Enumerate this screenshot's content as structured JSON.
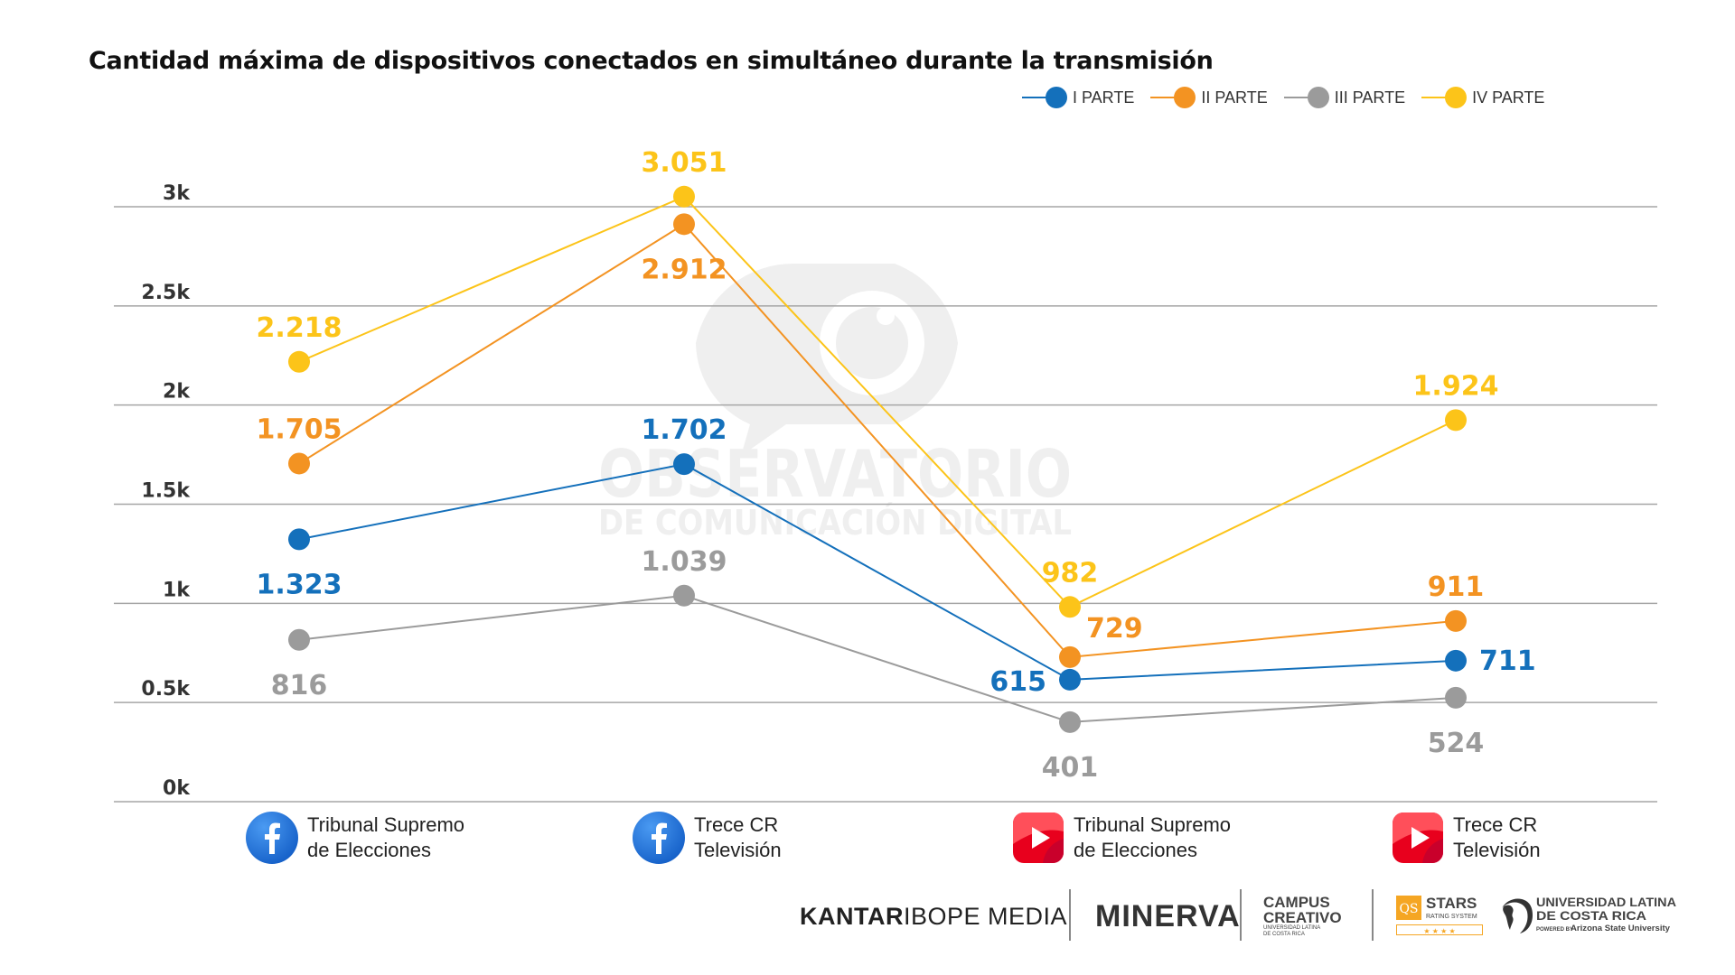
{
  "title": "Cantidad máxima de dispositivos conectados en simultáneo durante la transmisión",
  "legend": [
    {
      "label": "I PARTE",
      "color": "#1470bb"
    },
    {
      "label": "II PARTE",
      "color": "#f39322"
    },
    {
      "label": "III PARTE",
      "color": "#9b9b9b"
    },
    {
      "label": "IV PARTE",
      "color": "#fcc419"
    }
  ],
  "watermark": {
    "line1": "OBSERVATORIO",
    "line2": "DE COMUNICACIÓN DIGITAL"
  },
  "categories": [
    {
      "line1": "Tribunal Supremo",
      "line2": "de Elecciones",
      "platform": "facebook-icon"
    },
    {
      "line1": "Trece CR",
      "line2": "Televisión",
      "platform": "facebook-icon"
    },
    {
      "line1": "Tribunal Supremo",
      "line2": "de Elecciones",
      "platform": "youtube-icon"
    },
    {
      "line1": "Trece CR",
      "line2": "Televisión",
      "platform": "youtube-icon"
    }
  ],
  "footer": {
    "kantar_bold": "KANTAR",
    "kantar_rest": " IBOPE MEDIA",
    "minerva": "MINERVA",
    "campus_line1": "CAMPUS",
    "campus_line2": "CREATIVO",
    "campus_sub1": "UNIVERSIDAD LATINA",
    "campus_sub2": "DE COSTA RICA",
    "qs_logo": "QS",
    "qs_stars": "STARS",
    "qs_sub": "RATING SYSTEM",
    "qs_rating": "★ ★ ★ ★",
    "ulatina_line1": "UNIVERSIDAD LATINA",
    "ulatina_line2": "DE COSTA RICA",
    "ulatina_powered": "POWERED BY",
    "ulatina_asu": "Arizona State University"
  },
  "chart_data": {
    "type": "line",
    "title": "Cantidad máxima de dispositivos conectados en simultáneo durante la transmisión",
    "categories": [
      "Tribunal Supremo de Elecciones (Facebook)",
      "Trece CR Televisión (Facebook)",
      "Tribunal Supremo de Elecciones (YouTube)",
      "Trece CR Televisión (YouTube)"
    ],
    "series": [
      {
        "name": "I PARTE",
        "color": "#1470bb",
        "values": [
          1323,
          1702,
          615,
          711
        ],
        "labels": [
          "1.323",
          "1.702",
          "615",
          "711"
        ],
        "label_pos": [
          "below",
          "above",
          "left",
          "right"
        ]
      },
      {
        "name": "II PARTE",
        "color": "#f39322",
        "values": [
          1705,
          2912,
          729,
          911
        ],
        "labels": [
          "1.705",
          "2.912",
          "729",
          "911"
        ],
        "label_pos": [
          "above",
          "below",
          "above-right",
          "above"
        ]
      },
      {
        "name": "III PARTE",
        "color": "#9b9b9b",
        "values": [
          816,
          1039,
          401,
          524
        ],
        "labels": [
          "816",
          "1.039",
          "401",
          "524"
        ],
        "label_pos": [
          "below",
          "above",
          "below",
          "below"
        ]
      },
      {
        "name": "IV PARTE",
        "color": "#fcc419",
        "values": [
          2218,
          3051,
          982,
          1924
        ],
        "labels": [
          "2.218",
          "3.051",
          "982",
          "1.924"
        ],
        "label_pos": [
          "above",
          "above",
          "above",
          "above"
        ]
      }
    ],
    "yticks": [
      "0k",
      "0.5k",
      "1k",
      "1.5k",
      "2k",
      "2.5k",
      "3k"
    ],
    "ytick_values": [
      0,
      500,
      1000,
      1500,
      2000,
      2500,
      3000
    ],
    "ylim": [
      0,
      3000
    ],
    "xlabel": "",
    "ylabel": "",
    "grid": true,
    "legend_position": "top-right"
  }
}
